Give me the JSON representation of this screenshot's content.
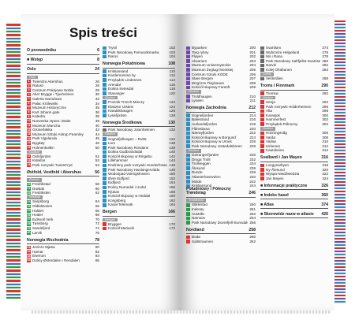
{
  "title": "Spis treści",
  "left_col1": [
    {
      "kind": "head",
      "t": "O przewodniku",
      "p": "6"
    },
    {
      "kind": "head",
      "t": "■ Wstęp",
      "p": "8"
    },
    {
      "kind": "head",
      "t": "Oslo",
      "p": "24"
    },
    {
      "kind": "grey",
      "t": "Oslo"
    },
    {
      "kind": "row",
      "n": "1",
      "c": "#d33",
      "t": "Twierdza Akershus",
      "p": "26"
    },
    {
      "kind": "row",
      "n": "2",
      "c": "#d33",
      "t": "Ratusz",
      "p": "28"
    },
    {
      "kind": "row",
      "n": "3",
      "c": "#d33",
      "t": "Centrum Pokojowe Nobla",
      "p": "29"
    },
    {
      "kind": "row",
      "n": "4",
      "c": "#d33",
      "t": "Aker Brygge i Tjuvholmen",
      "p": "30"
    },
    {
      "kind": "row",
      "n": "5",
      "c": "#d33",
      "t": "Galeria Narodowa",
      "p": "32"
    },
    {
      "kind": "row",
      "n": "6",
      "c": "#d33",
      "t": "Pałac Królewski",
      "p": "34"
    },
    {
      "kind": "row",
      "n": "7",
      "c": "#d33",
      "t": "Muzeum Historyczne",
      "p": "35"
    },
    {
      "kind": "row",
      "n": "8",
      "c": "#d33",
      "t": "Karl Johans gate",
      "p": "36"
    },
    {
      "kind": "row",
      "n": "9",
      "c": "#d33",
      "t": "Katedra",
      "p": "38"
    },
    {
      "kind": "row",
      "n": "10",
      "c": "#d33",
      "t": "Norweska Opera i Balet",
      "p": "39"
    },
    {
      "kind": "row",
      "n": "11",
      "c": "#d33",
      "t": "Muzeum Muncha",
      "p": "40"
    },
    {
      "kind": "row",
      "n": "12",
      "c": "#d33",
      "t": "Grünerløkka",
      "p": "42"
    },
    {
      "kind": "row",
      "n": "13",
      "c": "#d33",
      "t": "Muzeum Sztuki Astrup Fearnley",
      "p": "44"
    },
    {
      "kind": "row",
      "n": "14",
      "c": "#d33",
      "t": "Park Vigelanda",
      "p": "45"
    },
    {
      "kind": "row",
      "n": "15",
      "c": "#d33",
      "t": "Bygdøy",
      "p": "46"
    },
    {
      "kind": "row",
      "n": "16",
      "c": "#d33",
      "t": "Holmenkollen",
      "p": "50"
    },
    {
      "kind": "grey",
      "t": "Okolice"
    },
    {
      "kind": "row",
      "n": "17",
      "c": "#d33",
      "t": "Oslofjorden",
      "p": "52"
    },
    {
      "kind": "row",
      "n": "18",
      "c": "#d33",
      "t": "Kistefos",
      "p": "53"
    },
    {
      "kind": "row",
      "n": "19",
      "c": "#d33",
      "t": "Park rozrywki TusenFryd",
      "p": "54"
    },
    {
      "kind": "head",
      "t": "Østfold, Vestfold i Akershus",
      "p": "56"
    },
    {
      "kind": "grey",
      "t": "Østfold"
    },
    {
      "kind": "row",
      "n": "20",
      "c": "#2a9a4a",
      "t": "Fredrikstad",
      "p": "58"
    },
    {
      "kind": "row",
      "n": "21",
      "c": "#2a9a4a",
      "t": "Drøbak",
      "p": "60"
    },
    {
      "kind": "row",
      "n": "22",
      "c": "#2a9a4a",
      "t": "Fredriksten",
      "p": "62"
    },
    {
      "kind": "grey",
      "t": "Vestfold"
    },
    {
      "kind": "row",
      "n": "23",
      "c": "#2a9a4a",
      "t": "Sarpsborg",
      "p": "64"
    },
    {
      "kind": "row",
      "n": "24",
      "c": "#2a9a4a",
      "t": "Oldtidsveien",
      "p": "65"
    },
    {
      "kind": "row",
      "n": "25",
      "c": "#2a9a4a",
      "t": "Halden",
      "p": "66"
    },
    {
      "kind": "row",
      "n": "26",
      "c": "#2a9a4a",
      "t": "Hvaler",
      "p": "68"
    },
    {
      "kind": "row",
      "n": "27",
      "c": "#2a9a4a",
      "t": "Eidsvoll Verk",
      "p": "70"
    },
    {
      "kind": "row",
      "n": "28",
      "c": "#2a9a4a",
      "t": "Tønsberg",
      "p": "72"
    },
    {
      "kind": "row",
      "n": "29",
      "c": "#2a9a4a",
      "t": "Sandefjord",
      "p": "74"
    },
    {
      "kind": "row",
      "n": "30",
      "c": "#2a9a4a",
      "t": "Larvik",
      "p": "76"
    },
    {
      "kind": "head",
      "t": "Norwegia Wschodnia",
      "p": "78"
    },
    {
      "kind": "row",
      "n": "31",
      "c": "#d33",
      "t": "Jezioro Mjøsa",
      "p": "80"
    },
    {
      "kind": "row",
      "n": "32",
      "c": "#d33",
      "t": "Hamar",
      "p": "82"
    },
    {
      "kind": "row",
      "n": "33",
      "c": "#d33",
      "t": "Elverum",
      "p": "84"
    },
    {
      "kind": "row",
      "n": "34",
      "c": "#d33",
      "t": "Doliny Østerdalen i Rendalen",
      "p": "86"
    }
  ],
  "left_col2": [
    {
      "kind": "row",
      "n": "",
      "c": "#2e8fc0",
      "t": "Trysil",
      "p": "102"
    },
    {
      "kind": "row",
      "n": "",
      "c": "#2e8fc0",
      "t": "Park Narodowy Femundsmarka",
      "p": "103"
    },
    {
      "kind": "row",
      "n": "",
      "c": "#2e8fc0",
      "t": "Røros",
      "p": "104"
    },
    {
      "kind": "head",
      "t": "Norwegia Południowa",
      "p": "108"
    },
    {
      "kind": "row",
      "n": "",
      "c": "#2e8fc0",
      "t": "Kristiansand",
      "p": "110"
    },
    {
      "kind": "row",
      "n": "",
      "c": "#2e8fc0",
      "t": "Kardemomme by",
      "p": "112"
    },
    {
      "kind": "row",
      "n": "",
      "c": "#2e8fc0",
      "t": "Przylądek Lindesnes",
      "p": "114"
    },
    {
      "kind": "row",
      "n": "",
      "c": "#2e8fc0",
      "t": "Arendal",
      "p": "116"
    },
    {
      "kind": "row",
      "n": "",
      "c": "#2e8fc0",
      "t": "Dolina Setesdal",
      "p": "118"
    },
    {
      "kind": "row",
      "n": "",
      "c": "#2e8fc0",
      "t": "Stavanger",
      "p": "120"
    },
    {
      "kind": "grey",
      "t": "Okolice"
    },
    {
      "kind": "row",
      "n": "",
      "c": "#2e8fc0",
      "t": "Pomnik Trzech Mieczy",
      "p": "122"
    },
    {
      "kind": "row",
      "n": "",
      "c": "#2e8fc0",
      "t": "Klasztor Utstein",
      "p": "124"
    },
    {
      "kind": "row",
      "n": "",
      "c": "#2e8fc0",
      "t": "Haraldshaugen",
      "p": "126"
    },
    {
      "kind": "row",
      "n": "",
      "c": "#2e8fc0",
      "t": "Lysefjorden",
      "p": "128"
    },
    {
      "kind": "head",
      "t": "Norwegia Środkowa",
      "p": "130"
    },
    {
      "kind": "row",
      "n": "",
      "c": "#6a6a6a",
      "t": "Park Narodowy Jotunheimen",
      "p": "132"
    },
    {
      "kind": "grey",
      "t": "Okolice"
    },
    {
      "kind": "row",
      "n": "",
      "c": "#2e8fc0",
      "t": "Sognefjellvegen – Rv55",
      "p": "134"
    },
    {
      "kind": "row",
      "n": "",
      "c": "#2e8fc0",
      "t": "Lom",
      "p": "136"
    },
    {
      "kind": "row",
      "n": "",
      "c": "#2e8fc0",
      "t": "Park Narodowy Rondane",
      "p": "138"
    },
    {
      "kind": "row",
      "n": "",
      "c": "#2e8fc0",
      "t": "Dolina Gudbrandsdal",
      "p": "140"
    },
    {
      "kind": "row",
      "n": "",
      "c": "#2e8fc0",
      "t": "Kościół słupowy w Ringebu",
      "p": "142"
    },
    {
      "kind": "row",
      "n": "",
      "c": "#2e8fc0",
      "t": "Lillehammer",
      "p": "144"
    },
    {
      "kind": "row",
      "n": "",
      "c": "#2e8fc0",
      "t": "Rodzinny park rozrywki Hunderfossen",
      "p": "146"
    },
    {
      "kind": "row",
      "n": "",
      "c": "#2e8fc0",
      "t": "Park Narodowy Hardangervidda",
      "p": "148"
    },
    {
      "kind": "row",
      "n": "",
      "c": "#2e8fc0",
      "t": "Wodospad Vøringsfossen",
      "p": "150"
    },
    {
      "kind": "row",
      "n": "",
      "c": "#2e8fc0",
      "t": "Øvre Eidfjord",
      "p": "152"
    },
    {
      "kind": "row",
      "n": "",
      "c": "#2e8fc0",
      "t": "Eidfjord",
      "p": "154"
    },
    {
      "kind": "row",
      "n": "",
      "c": "#2e8fc0",
      "t": "Doliny Numedal i Uvdal",
      "p": "156"
    },
    {
      "kind": "row",
      "n": "",
      "c": "#2e8fc0",
      "t": "Rjukan",
      "p": "158"
    },
    {
      "kind": "row",
      "n": "",
      "c": "#2e8fc0",
      "t": "Kościół słupowy w Heddal",
      "p": "160"
    },
    {
      "kind": "row",
      "n": "",
      "c": "#2e8fc0",
      "t": "Kongsberg",
      "p": "162"
    },
    {
      "kind": "row",
      "n": "",
      "c": "#2e8fc0",
      "t": "Kanał Telemark",
      "p": "164"
    },
    {
      "kind": "head",
      "t": "Bergen",
      "p": "166"
    },
    {
      "kind": "grey",
      "t": "Bergen"
    },
    {
      "kind": "row",
      "n": "",
      "c": "#d33",
      "t": "Bryggen",
      "p": "170"
    },
    {
      "kind": "row",
      "n": "",
      "c": "#d33",
      "t": "Kościół Mariacki",
      "p": "172"
    }
  ],
  "right_col1": [
    {
      "kind": "row",
      "n": "",
      "c": "#6b4aa8",
      "t": "Byparken",
      "p": "200"
    },
    {
      "kind": "row",
      "n": "",
      "c": "#6b4aa8",
      "t": "Targ rybny",
      "p": "201"
    },
    {
      "kind": "row",
      "n": "",
      "c": "#6b4aa8",
      "t": "Fløyen",
      "p": "202"
    },
    {
      "kind": "row",
      "n": "",
      "c": "#6b4aa8",
      "t": "Akvarium",
      "p": "203"
    },
    {
      "kind": "row",
      "n": "",
      "c": "#6b4aa8",
      "t": "Muzeum Uniwersyteckie",
      "p": "204"
    },
    {
      "kind": "row",
      "n": "",
      "c": "#6b4aa8",
      "t": "Muzeum Żeglugi Morskiej",
      "p": "205"
    },
    {
      "kind": "row",
      "n": "",
      "c": "#6b4aa8",
      "t": "Centrum Sztuki KODE",
      "p": "206"
    },
    {
      "kind": "row",
      "n": "",
      "c": "#6b4aa8",
      "t": "Stare Bergen",
      "p": "207"
    },
    {
      "kind": "row",
      "n": "",
      "c": "#6b4aa8",
      "t": "Wzgórze Fløybanen",
      "p": "208"
    },
    {
      "kind": "row",
      "n": "",
      "c": "#6b4aa8",
      "t": "Kościół słupowy Fantoft",
      "p": "209"
    },
    {
      "kind": "grey",
      "t": "Okolice"
    },
    {
      "kind": "row",
      "n": "",
      "c": "#6b4aa8",
      "t": "Troldhaugen",
      "p": "210"
    },
    {
      "kind": "row",
      "n": "",
      "c": "#6b4aa8",
      "t": "Lysøen",
      "p": "211"
    },
    {
      "kind": "head",
      "t": "Norwegia Zachodnia",
      "p": "212"
    },
    {
      "kind": "row",
      "n": "",
      "c": "#2e8fc0",
      "t": "Sognefjorden",
      "p": "214"
    },
    {
      "kind": "row",
      "n": "",
      "c": "#2e8fc0",
      "t": "Balestrand",
      "p": "216"
    },
    {
      "kind": "row",
      "n": "",
      "c": "#2e8fc0",
      "t": "Aurlandsfjorden",
      "p": "218"
    },
    {
      "kind": "row",
      "n": "",
      "c": "#2e8fc0",
      "t": "Flåmsbana",
      "p": "220"
    },
    {
      "kind": "row",
      "n": "",
      "c": "#2e8fc0",
      "t": "Nærøyfjorden",
      "p": "222"
    },
    {
      "kind": "row",
      "n": "",
      "c": "#2e8fc0",
      "t": "Kościół słupowy w Borgund",
      "p": "224"
    },
    {
      "kind": "row",
      "n": "",
      "c": "#2e8fc0",
      "t": "Kościół słupowy w Urnes",
      "p": "226"
    },
    {
      "kind": "row",
      "n": "",
      "c": "#2e8fc0",
      "t": "Park Narodowy Jostedalsbreen",
      "p": "228"
    },
    {
      "kind": "grey",
      "t": "Okolice"
    },
    {
      "kind": "row",
      "n": "",
      "c": "#2e8fc0",
      "t": "Geirangerfjorden",
      "p": "230"
    },
    {
      "kind": "row",
      "n": "",
      "c": "#2e8fc0",
      "t": "Droga Trolli",
      "p": "232"
    },
    {
      "kind": "row",
      "n": "",
      "c": "#2e8fc0",
      "t": "Trollveggen",
      "p": "234"
    },
    {
      "kind": "row",
      "n": "",
      "c": "#2e8fc0",
      "t": "Ålesund",
      "p": "236"
    },
    {
      "kind": "row",
      "n": "",
      "c": "#2e8fc0",
      "t": "Runde",
      "p": "238"
    },
    {
      "kind": "row",
      "n": "",
      "c": "#2e8fc0",
      "t": "Atlanterhavsveien",
      "p": "240"
    },
    {
      "kind": "row",
      "n": "",
      "c": "#2e8fc0",
      "t": "Molde",
      "p": "242"
    },
    {
      "kind": "row",
      "n": "",
      "c": "#2e8fc0",
      "t": "Kristiansund",
      "p": "244"
    },
    {
      "kind": "head",
      "t": "Południowy i Północny Trøndelag",
      "p": "246"
    },
    {
      "kind": "grey",
      "t": "Trondheim"
    },
    {
      "kind": "row",
      "n": "",
      "c": "#2a9a4a",
      "t": "Stiklestad",
      "p": "250"
    },
    {
      "kind": "row",
      "n": "",
      "c": "#2a9a4a",
      "t": "Inderøy",
      "p": "251"
    },
    {
      "kind": "row",
      "n": "",
      "c": "#2a9a4a",
      "t": "Austrått",
      "p": "252"
    },
    {
      "kind": "row",
      "n": "",
      "c": "#2a9a4a",
      "t": "Namsos",
      "p": "254"
    },
    {
      "kind": "row",
      "n": "",
      "c": "#2a9a4a",
      "t": "Park Narodowy Dovrefjell-Sunndalsfjella",
      "p": "256"
    },
    {
      "kind": "head",
      "t": "Nordland",
      "p": "258"
    },
    {
      "kind": "row",
      "n": "",
      "c": "#d33",
      "t": "Bodø",
      "p": "260"
    },
    {
      "kind": "row",
      "n": "",
      "c": "#d33",
      "t": "Saltstraumen",
      "p": "262"
    }
  ],
  "right_col2": [
    {
      "kind": "row",
      "n": "",
      "c": "#6a6a6a",
      "t": "Svartisen",
      "p": "274"
    },
    {
      "kind": "row",
      "n": "",
      "c": "#6a6a6a",
      "t": "Wybrzeże Helgeland",
      "p": "276"
    },
    {
      "kind": "row",
      "n": "",
      "c": "#6a6a6a",
      "t": "Mo i Rana",
      "p": "278"
    },
    {
      "kind": "row",
      "n": "",
      "c": "#6a6a6a",
      "t": "Park Narodowy Saltfjellet-Svartisen",
      "p": "280"
    },
    {
      "kind": "row",
      "n": "",
      "c": "#6a6a6a",
      "t": "Narvik",
      "p": "282"
    },
    {
      "kind": "row",
      "n": "",
      "c": "#6a6a6a",
      "t": "Kolej Ofotbanen",
      "p": "284"
    },
    {
      "kind": "grey",
      "t": "Lofoty"
    },
    {
      "kind": "row",
      "n": "",
      "c": "#6a6a6a",
      "t": "Vesterålen",
      "p": "288"
    },
    {
      "kind": "head",
      "t": "Troms i Finnmark",
      "p": "290"
    },
    {
      "kind": "row",
      "n": "",
      "c": "#d33",
      "t": "Tromsø",
      "p": "292"
    },
    {
      "kind": "grey",
      "t": "Okolice"
    },
    {
      "kind": "row",
      "n": "",
      "c": "#d33",
      "t": "Senja",
      "p": "294"
    },
    {
      "kind": "row",
      "n": "",
      "c": "#d33",
      "t": "Park rozrywki Holderheimen",
      "p": "296"
    },
    {
      "kind": "row",
      "n": "",
      "c": "#d33",
      "t": "Alta",
      "p": "298"
    },
    {
      "kind": "row",
      "n": "",
      "c": "#d33",
      "t": "Karasjok",
      "p": "300"
    },
    {
      "kind": "row",
      "n": "",
      "c": "#d33",
      "t": "Hammerfest",
      "p": "302"
    },
    {
      "kind": "row",
      "n": "",
      "c": "#d33",
      "t": "Przylądek Północny",
      "p": "304"
    },
    {
      "kind": "grey",
      "t": "Okolice"
    },
    {
      "kind": "row",
      "n": "",
      "c": "#d33",
      "t": "Honningsvåg",
      "p": "306"
    },
    {
      "kind": "row",
      "n": "",
      "c": "#d33",
      "t": "Vardø",
      "p": "308"
    },
    {
      "kind": "row",
      "n": "",
      "c": "#d33",
      "t": "Vadsø",
      "p": "310"
    },
    {
      "kind": "row",
      "n": "",
      "c": "#d33",
      "t": "Kirkenes",
      "p": "312"
    },
    {
      "kind": "row",
      "n": "",
      "c": "#d33",
      "t": "Kautokeino",
      "p": "314"
    },
    {
      "kind": "head",
      "t": "Svalbard i Jan Mayen",
      "p": "316"
    },
    {
      "kind": "row",
      "n": "",
      "c": "#d33",
      "t": "Longyearbyen",
      "p": "318"
    },
    {
      "kind": "row",
      "n": "",
      "c": "#d33",
      "t": "Ny-Ålesund",
      "p": "320"
    },
    {
      "kind": "row",
      "n": "",
      "c": "#d33",
      "t": "Wyspa Niedźwiedzia",
      "p": "322"
    },
    {
      "kind": "row",
      "n": "",
      "c": "#d33",
      "t": "Jan Mayen",
      "p": "324"
    },
    {
      "kind": "head",
      "t": "■ Informacje praktyczne",
      "p": "326"
    },
    {
      "kind": "head",
      "t": "■ Indeks haseł",
      "p": "360"
    },
    {
      "kind": "head",
      "t": "■ Atlas",
      "p": "374"
    },
    {
      "kind": "head",
      "t": "■ Skorowidz nazw w atlasie",
      "p": "426"
    }
  ],
  "colors": {
    "red": "#d33",
    "green": "#2a9a4a",
    "blue": "#2e8fc0",
    "purple": "#6b4aa8",
    "grey": "#9a9a9a"
  }
}
